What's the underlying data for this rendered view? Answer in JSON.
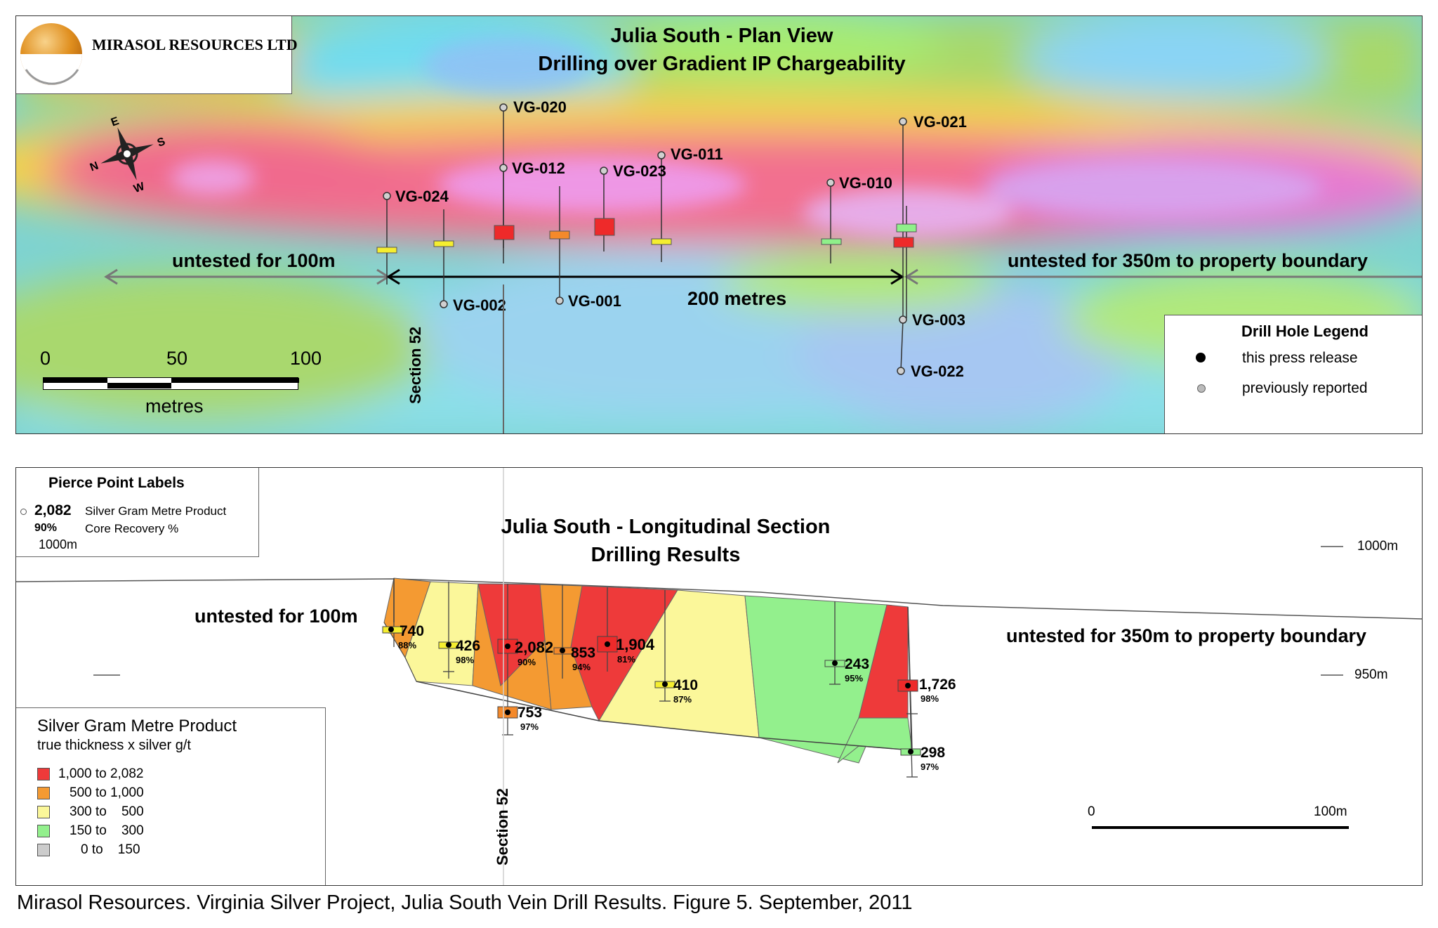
{
  "logo": {
    "company": "MIRASOL RESOURCES LTD"
  },
  "plan": {
    "title_line1": "Julia South - Plan View",
    "title_line2": "Drilling over Gradient IP Chargeability",
    "untested_left": "untested for 100m",
    "untested_right": "untested for 350m to property boundary",
    "distance_label": "200 metres",
    "section_label": "Section 52",
    "compass": {
      "n": "N",
      "e": "E",
      "s": "S",
      "w": "W"
    },
    "scale": {
      "tick0": "0",
      "tick50": "50",
      "tick100": "100",
      "unit": "metres"
    },
    "holes": [
      {
        "id": "VG-020"
      },
      {
        "id": "VG-012"
      },
      {
        "id": "VG-023"
      },
      {
        "id": "VG-011"
      },
      {
        "id": "VG-024"
      },
      {
        "id": "VG-010"
      },
      {
        "id": "VG-021"
      },
      {
        "id": "VG-002"
      },
      {
        "id": "VG-001"
      },
      {
        "id": "VG-003"
      },
      {
        "id": "VG-022"
      }
    ],
    "legend": {
      "title": "Drill Hole Legend",
      "current": "this press release",
      "previous": "previously reported"
    }
  },
  "section": {
    "title_line1": "Julia South - Longitudinal Section",
    "title_line2": "Drilling Results",
    "untested_left": "untested for 100m",
    "untested_right": "untested for 350m to property boundary",
    "section_label": "Section 52",
    "elev_1000": "1000m",
    "elev_950": "950m",
    "scale": {
      "tick0": "0",
      "tick100": "100m"
    },
    "pierce_legend": {
      "title": "Pierce Point Labels",
      "sample_value": "2,082",
      "sample_value_desc": "Silver Gram Metre Product",
      "sample_pct": "90%",
      "sample_pct_desc": "Core Recovery %",
      "elev": "1000m"
    },
    "grade_legend": {
      "title": "Silver Gram Metre Product",
      "subtitle": "true thickness x silver g/t",
      "items": [
        {
          "label": "1,000 to 2,082",
          "color": "#ee3a3a"
        },
        {
          "label": "500 to 1,000",
          "color": "#f49a32"
        },
        {
          "label": "300 to    500",
          "color": "#fbf79a"
        },
        {
          "label": "150 to    300",
          "color": "#93f08d"
        },
        {
          "label": "0 to    150",
          "color": "#cccccc"
        }
      ]
    },
    "pierce_points": [
      {
        "value": "740",
        "recovery": "88%"
      },
      {
        "value": "426",
        "recovery": "98%"
      },
      {
        "value": "2,082",
        "recovery": "90%"
      },
      {
        "value": "853",
        "recovery": "94%"
      },
      {
        "value": "1,904",
        "recovery": "81%"
      },
      {
        "value": "410",
        "recovery": "87%"
      },
      {
        "value": "753",
        "recovery": "97%"
      },
      {
        "value": "243",
        "recovery": "95%"
      },
      {
        "value": "1,726",
        "recovery": "98%"
      },
      {
        "value": "298",
        "recovery": "97%"
      }
    ]
  },
  "caption": "Mirasol Resources. Virginia Silver Project, Julia South Vein Drill Results. Figure 5. September, 2011"
}
